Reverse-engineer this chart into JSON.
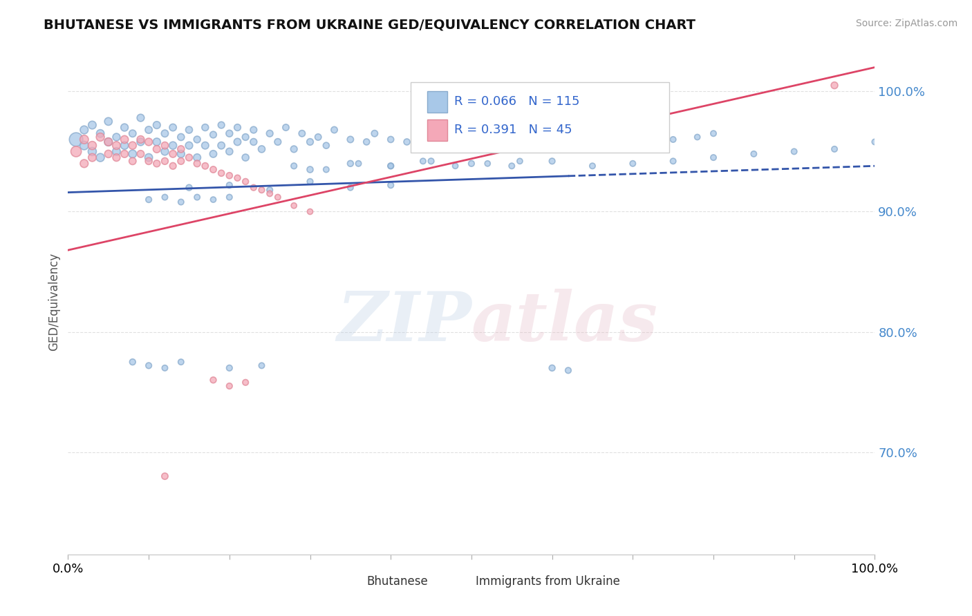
{
  "title": "BHUTANESE VS IMMIGRANTS FROM UKRAINE GED/EQUIVALENCY CORRELATION CHART",
  "source": "Source: ZipAtlas.com",
  "ylabel": "GED/Equivalency",
  "yticks": [
    0.7,
    0.8,
    0.9,
    1.0
  ],
  "ytick_labels": [
    "70.0%",
    "80.0%",
    "90.0%",
    "100.0%"
  ],
  "xlim": [
    0.0,
    1.0
  ],
  "ylim": [
    0.615,
    1.035
  ],
  "xticks": [
    0.0,
    0.1,
    0.2,
    0.3,
    0.4,
    0.5,
    0.6,
    0.7,
    0.8,
    0.9,
    1.0
  ],
  "legend_r1": "R = 0.066",
  "legend_n1": "N = 115",
  "legend_r2": "R = 0.391",
  "legend_n2": "N = 45",
  "blue_color": "#a8c8e8",
  "pink_color": "#f4a8b8",
  "blue_edge_color": "#88aacc",
  "pink_edge_color": "#e08898",
  "blue_line_color": "#3355aa",
  "pink_line_color": "#dd4466",
  "blue_line_solid_end": 0.62,
  "blue_line_y_start": 0.916,
  "blue_line_y_end": 0.938,
  "pink_line_y_start": 0.868,
  "pink_line_y_end": 1.02,
  "bg_color": "#ffffff",
  "grid_color": "#e0e0e0",
  "blue_scatter_x": [
    0.01,
    0.02,
    0.02,
    0.03,
    0.03,
    0.04,
    0.04,
    0.05,
    0.05,
    0.06,
    0.06,
    0.07,
    0.07,
    0.08,
    0.08,
    0.09,
    0.09,
    0.1,
    0.1,
    0.11,
    0.11,
    0.12,
    0.12,
    0.13,
    0.13,
    0.14,
    0.14,
    0.15,
    0.15,
    0.16,
    0.16,
    0.17,
    0.17,
    0.18,
    0.18,
    0.19,
    0.19,
    0.2,
    0.2,
    0.21,
    0.21,
    0.22,
    0.22,
    0.23,
    0.23,
    0.24,
    0.25,
    0.26,
    0.27,
    0.28,
    0.29,
    0.3,
    0.31,
    0.32,
    0.33,
    0.35,
    0.37,
    0.38,
    0.4,
    0.42,
    0.44,
    0.46,
    0.48,
    0.5,
    0.52,
    0.55,
    0.58,
    0.3,
    0.35,
    0.4,
    0.45,
    0.5,
    0.55,
    0.6,
    0.65,
    0.7,
    0.75,
    0.8,
    0.85,
    0.9,
    0.95,
    1.0,
    0.6,
    0.62,
    0.15,
    0.2,
    0.25,
    0.3,
    0.35,
    0.4,
    0.1,
    0.12,
    0.14,
    0.16,
    0.18,
    0.2,
    0.08,
    0.1,
    0.12,
    0.14,
    0.28,
    0.32,
    0.36,
    0.4,
    0.44,
    0.48,
    0.52,
    0.56,
    0.2,
    0.24,
    0.7,
    0.72,
    0.75,
    0.78,
    0.8
  ],
  "blue_scatter_y": [
    0.96,
    0.955,
    0.968,
    0.95,
    0.972,
    0.945,
    0.965,
    0.958,
    0.975,
    0.95,
    0.962,
    0.955,
    0.97,
    0.948,
    0.965,
    0.958,
    0.978,
    0.945,
    0.968,
    0.958,
    0.972,
    0.95,
    0.965,
    0.955,
    0.97,
    0.948,
    0.962,
    0.955,
    0.968,
    0.945,
    0.96,
    0.955,
    0.97,
    0.948,
    0.964,
    0.955,
    0.972,
    0.95,
    0.965,
    0.958,
    0.97,
    0.945,
    0.962,
    0.958,
    0.968,
    0.952,
    0.965,
    0.958,
    0.97,
    0.952,
    0.965,
    0.958,
    0.962,
    0.955,
    0.968,
    0.96,
    0.958,
    0.965,
    0.96,
    0.958,
    0.962,
    0.958,
    0.965,
    0.96,
    0.955,
    0.958,
    0.962,
    0.935,
    0.94,
    0.938,
    0.942,
    0.94,
    0.938,
    0.942,
    0.938,
    0.94,
    0.942,
    0.945,
    0.948,
    0.95,
    0.952,
    0.958,
    0.77,
    0.768,
    0.92,
    0.922,
    0.918,
    0.925,
    0.92,
    0.922,
    0.91,
    0.912,
    0.908,
    0.912,
    0.91,
    0.912,
    0.775,
    0.772,
    0.77,
    0.775,
    0.938,
    0.935,
    0.94,
    0.938,
    0.942,
    0.938,
    0.94,
    0.942,
    0.77,
    0.772,
    0.952,
    0.958,
    0.96,
    0.962,
    0.965
  ],
  "blue_scatter_size": [
    200,
    80,
    70,
    75,
    68,
    72,
    65,
    70,
    65,
    68,
    60,
    65,
    60,
    68,
    55,
    60,
    58,
    65,
    55,
    62,
    58,
    60,
    55,
    62,
    55,
    60,
    52,
    58,
    52,
    58,
    50,
    56,
    50,
    55,
    48,
    55,
    48,
    52,
    50,
    55,
    48,
    52,
    48,
    50,
    48,
    52,
    48,
    48,
    45,
    48,
    45,
    48,
    45,
    42,
    45,
    45,
    42,
    45,
    42,
    42,
    40,
    40,
    40,
    40,
    38,
    40,
    38,
    42,
    40,
    40,
    38,
    38,
    36,
    38,
    36,
    36,
    36,
    36,
    36,
    36,
    36,
    36,
    40,
    38,
    40,
    38,
    38,
    38,
    36,
    38,
    38,
    36,
    36,
    36,
    34,
    36,
    40,
    38,
    36,
    36,
    38,
    36,
    36,
    34,
    36,
    34,
    34,
    34,
    38,
    36,
    38,
    36,
    36,
    34,
    36
  ],
  "pink_scatter_x": [
    0.01,
    0.02,
    0.02,
    0.03,
    0.03,
    0.04,
    0.05,
    0.05,
    0.06,
    0.06,
    0.07,
    0.07,
    0.08,
    0.08,
    0.09,
    0.09,
    0.1,
    0.1,
    0.11,
    0.11,
    0.12,
    0.12,
    0.13,
    0.13,
    0.14,
    0.14,
    0.15,
    0.16,
    0.17,
    0.18,
    0.19,
    0.2,
    0.21,
    0.22,
    0.23,
    0.24,
    0.25,
    0.26,
    0.28,
    0.3,
    0.18,
    0.2,
    0.22,
    0.95,
    0.12
  ],
  "pink_scatter_y": [
    0.95,
    0.96,
    0.94,
    0.955,
    0.945,
    0.962,
    0.958,
    0.948,
    0.955,
    0.945,
    0.96,
    0.948,
    0.955,
    0.942,
    0.96,
    0.948,
    0.958,
    0.942,
    0.952,
    0.94,
    0.955,
    0.942,
    0.948,
    0.938,
    0.952,
    0.942,
    0.945,
    0.94,
    0.938,
    0.935,
    0.932,
    0.93,
    0.928,
    0.925,
    0.92,
    0.918,
    0.915,
    0.912,
    0.905,
    0.9,
    0.76,
    0.755,
    0.758,
    1.005,
    0.68
  ],
  "pink_scatter_size": [
    120,
    80,
    70,
    75,
    68,
    72,
    68,
    62,
    68,
    60,
    65,
    58,
    62,
    55,
    60,
    55,
    60,
    52,
    58,
    50,
    55,
    50,
    55,
    48,
    52,
    48,
    50,
    48,
    45,
    45,
    42,
    42,
    40,
    40,
    38,
    38,
    36,
    36,
    34,
    34,
    40,
    38,
    38,
    50,
    45
  ]
}
